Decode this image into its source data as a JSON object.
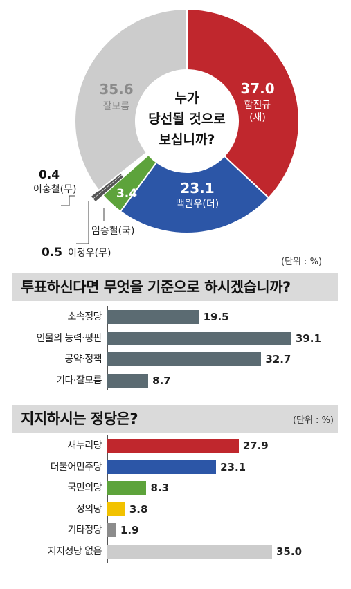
{
  "donut": {
    "question_lines": [
      "누가",
      "당선될 것으로",
      "보십니까?"
    ],
    "slices": [
      {
        "name": "함진규",
        "party": "(새)",
        "value": 37.0,
        "color": "#c0272d"
      },
      {
        "name": "백원우",
        "party": "(더)",
        "value": 23.1,
        "color": "#2c56a7"
      },
      {
        "name": "임승철",
        "party": "(국)",
        "value": 3.4,
        "color": "#5da33b"
      },
      {
        "name": "이정우",
        "party": "(무)",
        "value": 0.5,
        "color": "#555555"
      },
      {
        "name": "이홍철",
        "party": "(무)",
        "value": 0.4,
        "color": "#555555"
      },
      {
        "name": "잘모름",
        "party": "",
        "value": 35.6,
        "color": "#cccccc"
      }
    ],
    "labels": {
      "ham_value": "37.0",
      "ham_name": "함진규",
      "ham_party": "(새)",
      "baek_value": "23.1",
      "baek_name": "백원우(더)",
      "im_value": "3.4",
      "im_name": "임승철(국)",
      "lee_jw_value": "0.5",
      "lee_jw_name": "이정우(무)",
      "lee_hc_value": "0.4",
      "lee_hc_name": "이홍철(무)",
      "unknown_value": "35.6",
      "unknown_name": "잘모름"
    },
    "unit": "(단위 : %)"
  },
  "section1": {
    "title": "투표하신다면 무엇을 기준으로 하시겠습니까?"
  },
  "section2": {
    "title": "지지하시는 정당은?",
    "unit": "(단위 : %)"
  },
  "chart_data": [
    {
      "type": "pie",
      "title": "누가 당선될 것으로 보십니까?",
      "categories": [
        "함진규(새)",
        "백원우(더)",
        "임승철(국)",
        "이정우(무)",
        "이홍철(무)",
        "잘모름"
      ],
      "values": [
        37.0,
        23.1,
        3.4,
        0.5,
        0.4,
        35.6
      ],
      "colors": [
        "#c0272d",
        "#2c56a7",
        "#5da33b",
        "#555555",
        "#555555",
        "#cccccc"
      ]
    },
    {
      "type": "bar",
      "title": "투표하신다면 무엇을 기준으로 하시겠습니까?",
      "categories": [
        "소속정당",
        "인물의 능력·평판",
        "공약·정책",
        "기타·잘모름"
      ],
      "values": [
        19.5,
        39.1,
        32.7,
        8.7
      ],
      "labels": [
        "19.5",
        "39.1",
        "32.7",
        "8.7"
      ],
      "colors": [
        "#5b6b72",
        "#5b6b72",
        "#5b6b72",
        "#5b6b72"
      ],
      "xlim": [
        0,
        40
      ]
    },
    {
      "type": "bar",
      "title": "지지하시는 정당은?",
      "categories": [
        "새누리당",
        "더불어민주당",
        "국민의당",
        "정의당",
        "기타정당",
        "지지정당 없음"
      ],
      "values": [
        27.9,
        23.1,
        8.3,
        3.8,
        1.9,
        35.0
      ],
      "labels": [
        "27.9",
        "23.1",
        "8.3",
        "3.8",
        "1.9",
        "35.0"
      ],
      "colors": [
        "#c0272d",
        "#2c56a7",
        "#5da33b",
        "#f2c200",
        "#8c8c8c",
        "#cccccc"
      ],
      "xlim": [
        0,
        40
      ]
    }
  ]
}
